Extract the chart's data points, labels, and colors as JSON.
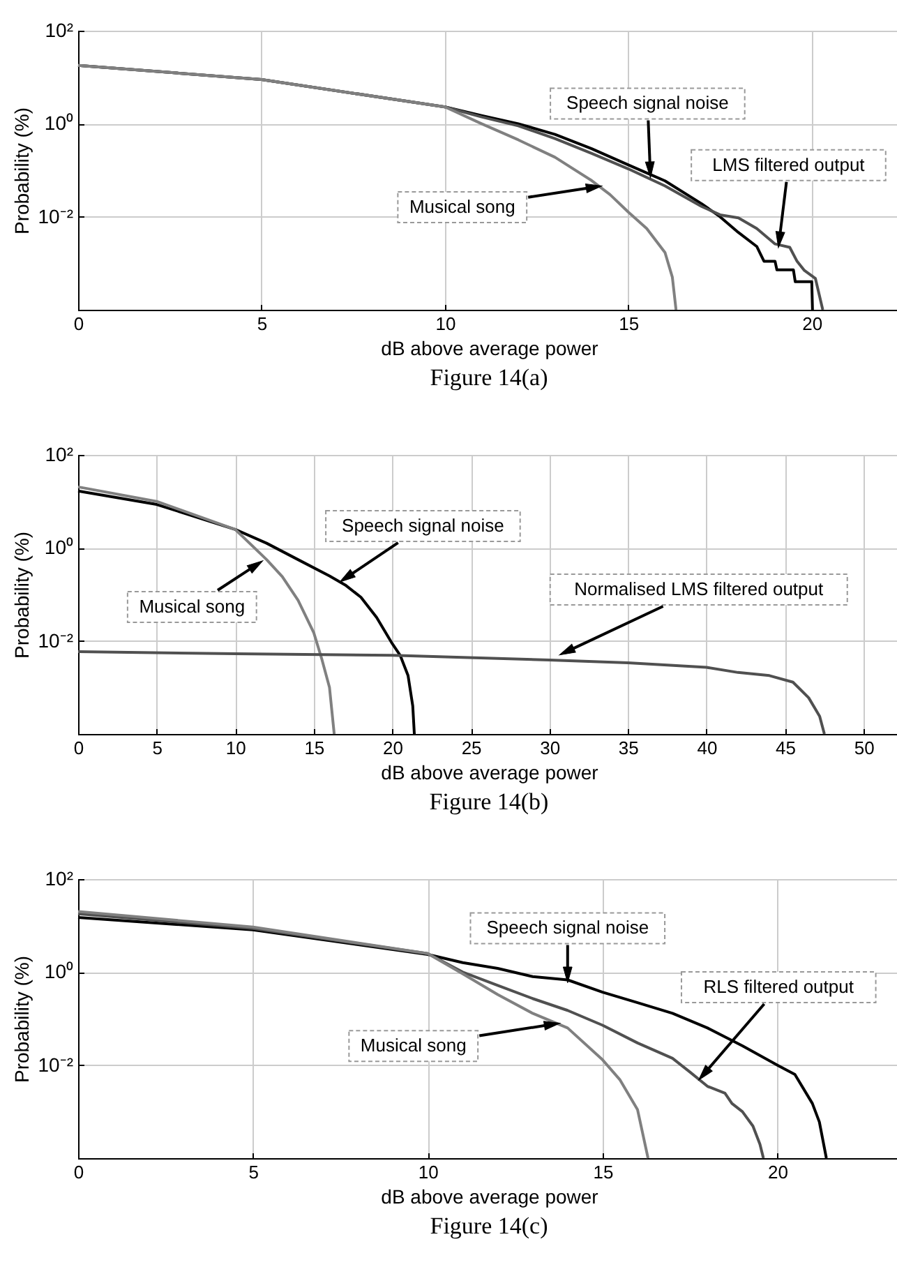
{
  "chart_data": [
    {
      "type": "line",
      "title": "Figure 14(a)",
      "xlabel": "dB above average power",
      "ylabel": "Probability (%)",
      "log": "y",
      "grid": true,
      "xlim": [
        0,
        22.4
      ],
      "xticks": [
        0,
        5,
        10,
        15,
        20
      ],
      "ylim": [
        0.0001,
        100
      ],
      "yticks": [
        {
          "value": 100,
          "label": "10²"
        },
        {
          "value": 1,
          "label": "10⁰"
        },
        {
          "value": 0.01,
          "label": "10⁻²"
        }
      ],
      "series": [
        {
          "color": "#000000",
          "x": [
            0,
            5,
            10,
            11,
            12,
            13,
            14,
            15,
            16,
            17,
            17.5,
            18,
            18.5,
            18.7,
            19,
            19.05,
            19.5,
            19.55,
            20,
            20.02
          ],
          "values": [
            18,
            8.9,
            2.3,
            1.5,
            1.0,
            0.59,
            0.29,
            0.13,
            0.059,
            0.019,
            0.01,
            0.0046,
            0.0023,
            0.0011,
            0.0011,
            0.00072,
            0.00072,
            0.0004,
            0.0004,
            0.0001
          ]
        },
        {
          "color": "#505050",
          "x": [
            0,
            5,
            10,
            11,
            12,
            13,
            14,
            15,
            16,
            17,
            17.5,
            18,
            18.5,
            19,
            19.4,
            19.6,
            19.8,
            20.1,
            20.3
          ],
          "values": [
            18,
            8.9,
            2.3,
            1.4,
            0.9,
            0.48,
            0.23,
            0.107,
            0.046,
            0.0166,
            0.011,
            0.0095,
            0.0056,
            0.0026,
            0.0022,
            0.0011,
            0.0007,
            0.00047,
            0.0001
          ]
        },
        {
          "color": "#808080",
          "x": [
            0,
            5,
            10,
            11,
            12,
            13,
            14,
            14.5,
            15,
            15.5,
            16,
            16.2,
            16.3
          ],
          "values": [
            18,
            8.9,
            2.3,
            1,
            0.45,
            0.19,
            0.06,
            0.03,
            0.0126,
            0.0056,
            0.0017,
            0.0005,
            0.0001
          ]
        }
      ],
      "annotations": [
        {
          "text": "Speech signal noise",
          "x": 15.6,
          "y": 0.08
        },
        {
          "text": "LMS filtered output",
          "x": 19.1,
          "y": 0.0025
        },
        {
          "text": "Musical song",
          "x": 14.2,
          "y": 0.045
        }
      ]
    },
    {
      "type": "line",
      "title": "Figure 14(b)",
      "xlabel": "dB above average power",
      "ylabel": "Probability (%)",
      "log": "y",
      "grid": true,
      "xlim": [
        0,
        52.3
      ],
      "xticks": [
        0,
        5,
        10,
        15,
        20,
        25,
        30,
        35,
        40,
        45,
        50
      ],
      "ylim": [
        0.0001,
        100
      ],
      "yticks": [
        {
          "value": 100,
          "label": "10²"
        },
        {
          "value": 1,
          "label": "10⁰"
        },
        {
          "value": 0.01,
          "label": "10⁻²"
        }
      ],
      "series": [
        {
          "color": "#000000",
          "x": [
            0,
            5,
            10,
            12,
            14,
            16,
            17,
            18,
            19,
            20,
            20.5,
            21,
            21.3,
            21.4
          ],
          "values": [
            16.7,
            8.6,
            2.5,
            1.26,
            0.56,
            0.25,
            0.16,
            0.087,
            0.032,
            0.0087,
            0.0049,
            0.0018,
            0.0004,
            0.0001
          ]
        },
        {
          "color": "#808080",
          "x": [
            0,
            5,
            10,
            12,
            13,
            14,
            15,
            15.5,
            16,
            16.3
          ],
          "values": [
            20.5,
            10,
            2.5,
            0.56,
            0.24,
            0.075,
            0.015,
            0.0042,
            0.001,
            0.0001
          ]
        },
        {
          "color": "#505050",
          "x": [
            0,
            10,
            20,
            30,
            35,
            40,
            42,
            44,
            45.5,
            46.5,
            47.2,
            47.5
          ],
          "values": [
            0.0059,
            0.0053,
            0.0049,
            0.0039,
            0.0034,
            0.0027,
            0.0021,
            0.0018,
            0.0013,
            0.0006,
            0.00024,
            0.0001
          ]
        }
      ],
      "annotations": [
        {
          "text": "Speech signal noise",
          "x": 16.8,
          "y": 0.2
        },
        {
          "text": "Musical song",
          "x": 11.6,
          "y": 0.49
        },
        {
          "text": "Normalised LMS filtered output",
          "x": 30.8,
          "y": 0.0053
        }
      ]
    },
    {
      "type": "line",
      "title": "Figure 14(c)",
      "xlabel": "dB above average power",
      "ylabel": "Probability (%)",
      "log": "y",
      "grid": true,
      "xlim": [
        0,
        23.5
      ],
      "xticks": [
        0,
        5,
        10,
        15,
        20
      ],
      "ylim": [
        0.0001,
        100
      ],
      "yticks": [
        {
          "value": 100,
          "label": "10²"
        },
        {
          "value": 1,
          "label": "10⁰"
        },
        {
          "value": 0.01,
          "label": "10⁻²"
        }
      ],
      "series": [
        {
          "color": "#000000",
          "x": [
            0,
            5,
            10,
            11,
            12,
            13,
            14,
            15,
            16,
            17,
            18,
            19,
            20,
            20.5,
            21,
            21.2,
            21.4
          ],
          "values": [
            15,
            8.1,
            2.4,
            1.6,
            1.2,
            0.8,
            0.68,
            0.37,
            0.22,
            0.13,
            0.063,
            0.026,
            0.01,
            0.0063,
            0.0015,
            0.0006,
            0.0001
          ]
        },
        {
          "color": "#505050",
          "x": [
            0,
            5,
            10,
            11,
            12,
            13,
            14,
            15,
            16,
            17,
            17.5,
            18,
            18.5,
            18.7,
            19,
            19.3,
            19.5,
            19.6
          ],
          "values": [
            18,
            8.7,
            2.5,
            1.0,
            0.52,
            0.27,
            0.15,
            0.072,
            0.03,
            0.014,
            0.0071,
            0.0035,
            0.0025,
            0.0015,
            0.001,
            0.00049,
            0.0002,
            0.0001
          ]
        },
        {
          "color": "#808080",
          "x": [
            0,
            5,
            10,
            11,
            12,
            13,
            14,
            15,
            15.5,
            16,
            16.3
          ],
          "values": [
            20,
            9.3,
            2.5,
            0.92,
            0.33,
            0.13,
            0.063,
            0.013,
            0.0048,
            0.0011,
            0.0001
          ]
        }
      ],
      "annotations": [
        {
          "text": "Speech signal noise",
          "x": 14,
          "y": 0.68
        },
        {
          "text": "RLS filtered output",
          "x": 17.8,
          "y": 0.0053
        },
        {
          "text": "Musical song",
          "x": 13.7,
          "y": 0.078
        }
      ]
    }
  ]
}
